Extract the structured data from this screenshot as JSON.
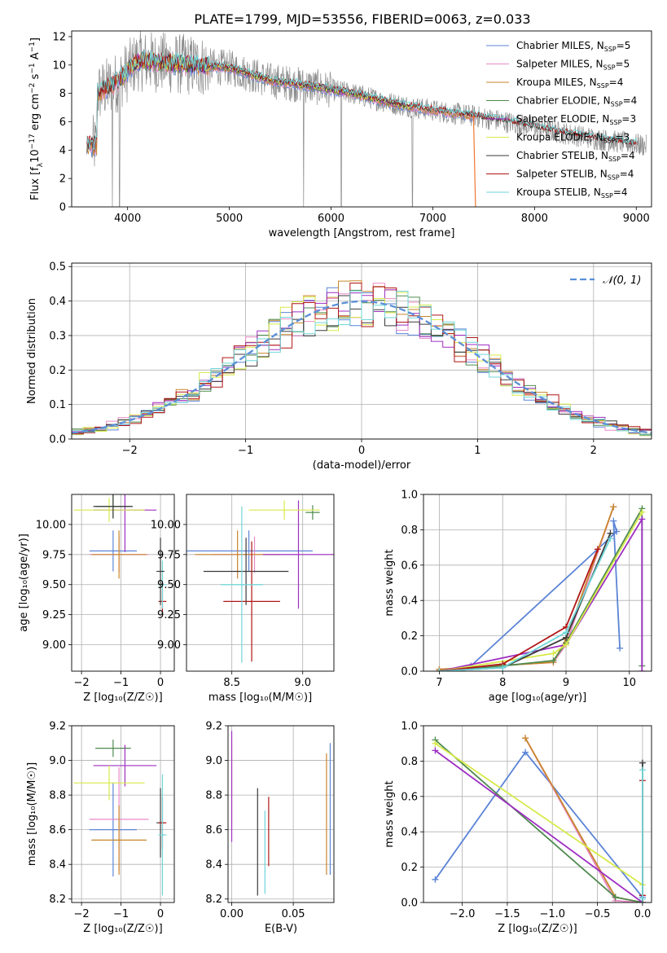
{
  "figure": {
    "title": "PLATE=1799, MJD=53556, FIBERID=0063, z=0.033"
  },
  "colors": {
    "Chabrier MILES": "#5b84d6",
    "Salpeter MILES": "#e98ac7",
    "Kroupa MILES": "#c8862c",
    "Chabrier ELODIE": "#4f8a4f",
    "Salpeter ELODIE": "#9e2fc2",
    "Kroupa ELODIE": "#d7ea4a",
    "Chabrier STELIB": "#3a3a3a",
    "Salpeter STELIB": "#b01515",
    "Kroupa STELIB": "#6fd6d9",
    "data": "#8c8c8c",
    "orange": "#ee7733",
    "gauss": "#5b8fd6",
    "grid": "#b0b0b0"
  },
  "chart_data": [
    {
      "id": "spectrum",
      "type": "line",
      "xlabel": "wavelength [Angstrom, rest frame]",
      "ylabel": "Flux [f_λ 10^-17 erg cm^-2 s^-1 A^-1]",
      "xlim": [
        3450,
        9150
      ],
      "ylim": [
        0,
        12.4
      ],
      "xticks": [
        4000,
        5000,
        6000,
        7000,
        8000,
        9000
      ],
      "yticks": [
        0,
        2,
        4,
        6,
        8,
        10,
        12
      ],
      "grid": false,
      "legend_position": "top-right",
      "legend": [
        {
          "label": "Chabrier MILES, N",
          "sub": "SSP",
          "suffix": "=5",
          "color_key": "Chabrier MILES"
        },
        {
          "label": "Salpeter MILES, N",
          "sub": "SSP",
          "suffix": "=5",
          "color_key": "Salpeter MILES"
        },
        {
          "label": "Kroupa MILES, N",
          "sub": "SSP",
          "suffix": "=4",
          "color_key": "Kroupa MILES"
        },
        {
          "label": "Chabrier ELODIE, N",
          "sub": "SSP",
          "suffix": "=4",
          "color_key": "Chabrier ELODIE"
        },
        {
          "label": "Salpeter ELODIE, N",
          "sub": "SSP",
          "suffix": "=3",
          "color_key": "Salpeter ELODIE"
        },
        {
          "label": "Kroupa ELODIE, N",
          "sub": "SSP",
          "suffix": "=3",
          "color_key": "Kroupa ELODIE"
        },
        {
          "label": "Chabrier STELIB, N",
          "sub": "SSP",
          "suffix": "=4",
          "color_key": "Chabrier STELIB"
        },
        {
          "label": "Salpeter STELIB, N",
          "sub": "SSP",
          "suffix": "=4",
          "color_key": "Salpeter STELIB"
        },
        {
          "label": "Kroupa STELIB, N",
          "sub": "SSP",
          "suffix": "=4",
          "color_key": "Kroupa STELIB"
        }
      ],
      "continuum": {
        "x": [
          3700,
          3900,
          4100,
          4300,
          4600,
          5000,
          5400,
          5800,
          6200,
          6600,
          7000,
          7400,
          7800,
          8200,
          8600,
          9100
        ],
        "y": [
          8.0,
          8.8,
          10.3,
          10.2,
          10.0,
          9.8,
          8.9,
          8.5,
          8.0,
          7.3,
          6.8,
          6.4,
          5.9,
          5.3,
          4.8,
          4.3
        ]
      },
      "model_ranges": {
        "MILES": [
          3600,
          7420
        ],
        "ELODIE": [
          3900,
          6800
        ],
        "STELIB": [
          3600,
          9000
        ]
      },
      "dropouts_x": [
        3850,
        3920,
        5730,
        6100,
        6800
      ]
    },
    {
      "id": "residuals",
      "type": "histogram",
      "xlabel": "(data-model)/error",
      "ylabel": "Normed distribution",
      "xlim": [
        -2.5,
        2.5
      ],
      "ylim": [
        0,
        0.51
      ],
      "xticks": [
        -2,
        -1,
        0,
        1,
        2
      ],
      "yticks": [
        0.0,
        0.1,
        0.2,
        0.3,
        0.4,
        0.5
      ],
      "grid": true,
      "legend_position": "top-right",
      "gauss_label": "𝒩(0, 1)",
      "bin_width": 0.1
    },
    {
      "id": "age-vs-Z",
      "type": "scatter",
      "xlabel": "Z [log₁₀(Z/Z☉)]",
      "ylabel": "age  [log₁₀(age/yr)]",
      "xlim": [
        -2.25,
        0.35
      ],
      "ylim": [
        8.78,
        10.25
      ],
      "xticks": [
        -2,
        -1,
        0
      ],
      "yticks": [
        9.0,
        9.25,
        9.5,
        9.75,
        10.0
      ],
      "grid": true,
      "points": [
        {
          "m": "Chabrier MILES",
          "x": -1.2,
          "xerr": 0.6,
          "y": 9.78,
          "yerr": 0.17
        },
        {
          "m": "Salpeter MILES",
          "x": -1.05,
          "xerr": 0.75,
          "y": 9.75,
          "yerr": 0.15
        },
        {
          "m": "Kroupa MILES",
          "x": -1.05,
          "xerr": 0.7,
          "y": 9.75,
          "yerr": 0.2
        },
        {
          "m": "Chabrier ELODIE",
          "x": -1.2,
          "xerr": 0.45,
          "y": 10.15,
          "yerr": 0.1
        },
        {
          "m": "Salpeter ELODIE",
          "x": -0.9,
          "xerr": 0.8,
          "y": 10.12,
          "yerr": 0.35
        },
        {
          "m": "Kroupa ELODIE",
          "x": -1.3,
          "xerr": 0.9,
          "y": 10.12,
          "yerr": 0.1
        },
        {
          "m": "Chabrier STELIB",
          "x": -1.2,
          "xerr": 0.5,
          "y": 10.15,
          "yerr": 0.1
        },
        {
          "m": "Salpeter STELIB",
          "x": 0.05,
          "xerr": 0.1,
          "y": 9.36,
          "yerr": 0.1
        },
        {
          "m": "Kroupa STELIB",
          "x": 0.05,
          "xerr": 0.1,
          "y": 9.5,
          "yerr": 0.2
        },
        {
          "m": "Chabrier STELIB",
          "x": 0.0,
          "xerr": 0.1,
          "y": 9.61,
          "yerr": 0.28
        }
      ]
    },
    {
      "id": "age-vs-mass",
      "type": "scatter",
      "xlabel": "mass [log₁₀(M/M☉)]",
      "ylabel": "",
      "xlim": [
        8.18,
        9.22
      ],
      "ylim": [
        8.78,
        10.25
      ],
      "xticks": [
        8.5,
        9.0
      ],
      "yticks": [
        9.0,
        9.25,
        9.5,
        9.75,
        10.0
      ],
      "grid": true,
      "points": [
        {
          "m": "Chabrier MILES",
          "x": 8.62,
          "xerr": 0.45,
          "y": 9.78,
          "yerr": 0.17
        },
        {
          "m": "Salpeter MILES",
          "x": 8.66,
          "xerr": 0.3,
          "y": 9.75,
          "yerr": 0.15
        },
        {
          "m": "Kroupa MILES",
          "x": 8.54,
          "xerr": 0.3,
          "y": 9.75,
          "yerr": 0.2
        },
        {
          "m": "Chabrier ELODIE",
          "x": 9.07,
          "xerr": 0.05,
          "y": 10.1,
          "yerr": 0.06
        },
        {
          "m": "Salpeter ELODIE",
          "x": 8.97,
          "xerr": 0.25,
          "y": 9.75,
          "yerr": 0.45
        },
        {
          "m": "Kroupa ELODIE",
          "x": 8.87,
          "xerr": 0.25,
          "y": 10.12,
          "yerr": 0.08
        },
        {
          "m": "Chabrier STELIB",
          "x": 8.6,
          "xerr": 0.3,
          "y": 9.61,
          "yerr": 0.28
        },
        {
          "m": "Salpeter STELIB",
          "x": 8.64,
          "xerr": 0.2,
          "y": 9.36,
          "yerr": 0.5
        },
        {
          "m": "Kroupa STELIB",
          "x": 8.57,
          "xerr": 0.15,
          "y": 9.5,
          "yerr": 0.65
        }
      ]
    },
    {
      "id": "mass-weight-vs-age",
      "type": "line",
      "xlabel": "age  [log₁₀(age/yr)]",
      "ylabel": "mass weight",
      "xlim": [
        6.75,
        10.35
      ],
      "ylim": [
        0,
        1.0
      ],
      "xticks": [
        7,
        8,
        9,
        10
      ],
      "yticks": [
        0.0,
        0.2,
        0.4,
        0.6,
        0.8,
        1.0
      ],
      "grid": true,
      "series": [
        {
          "m": "Chabrier MILES",
          "x": [
            7.5,
            9.8,
            9.75,
            9.85
          ],
          "y": [
            0.03,
            0.79,
            0.85,
            0.13
          ]
        },
        {
          "m": "Salpeter MILES",
          "x": [
            7.0,
            8.8,
            9.0,
            9.75
          ],
          "y": [
            0.01,
            0.05,
            0.15,
            0.93
          ]
        },
        {
          "m": "Kroupa MILES",
          "x": [
            7.0,
            8.8,
            9.0,
            9.75
          ],
          "y": [
            0.01,
            0.05,
            0.18,
            0.93
          ]
        },
        {
          "m": "Chabrier ELODIE",
          "x": [
            7.0,
            8.0,
            8.8,
            9.0,
            10.2,
            10.2
          ],
          "y": [
            0.0,
            0.03,
            0.06,
            0.16,
            0.92,
            0.03
          ]
        },
        {
          "m": "Salpeter ELODIE",
          "x": [
            7.0,
            9.0,
            10.2,
            10.2
          ],
          "y": [
            0.0,
            0.15,
            0.86,
            0.0
          ]
        },
        {
          "m": "Kroupa ELODIE",
          "x": [
            7.0,
            8.8,
            9.0,
            10.2
          ],
          "y": [
            0.0,
            0.1,
            0.15,
            0.9
          ]
        },
        {
          "m": "Chabrier STELIB",
          "x": [
            7.0,
            8.0,
            9.0,
            9.7
          ],
          "y": [
            0.0,
            0.02,
            0.19,
            0.78
          ]
        },
        {
          "m": "Salpeter STELIB",
          "x": [
            7.0,
            8.0,
            9.0,
            9.5
          ],
          "y": [
            0.0,
            0.04,
            0.25,
            0.69
          ]
        },
        {
          "m": "Kroupa STELIB",
          "x": [
            7.0,
            8.0,
            9.0,
            9.7
          ],
          "y": [
            0.0,
            0.02,
            0.22,
            0.75
          ]
        }
      ]
    },
    {
      "id": "mass-vs-Z",
      "type": "scatter",
      "xlabel": "Z [log₁₀(Z/Z☉)]",
      "ylabel": "mass [log₁₀(M/M☉)]",
      "xlim": [
        -2.25,
        0.35
      ],
      "ylim": [
        8.18,
        9.2
      ],
      "xticks": [
        -2,
        -1,
        0
      ],
      "yticks": [
        8.2,
        8.4,
        8.6,
        8.8,
        9.0,
        9.2
      ],
      "grid": true,
      "points": [
        {
          "m": "Chabrier MILES",
          "x": -1.2,
          "xerr": 0.6,
          "y": 8.6,
          "yerr": 0.27
        },
        {
          "m": "Salpeter MILES",
          "x": -1.05,
          "xerr": 0.75,
          "y": 8.66,
          "yerr": 0.3
        },
        {
          "m": "Kroupa MILES",
          "x": -1.05,
          "xerr": 0.7,
          "y": 8.54,
          "yerr": 0.2
        },
        {
          "m": "Chabrier ELODIE",
          "x": -1.2,
          "xerr": 0.45,
          "y": 9.07,
          "yerr": 0.05
        },
        {
          "m": "Salpeter ELODIE",
          "x": -0.9,
          "xerr": 0.8,
          "y": 8.97,
          "yerr": 0.12
        },
        {
          "m": "Kroupa ELODIE",
          "x": -1.3,
          "xerr": 0.9,
          "y": 8.87,
          "yerr": 0.1
        },
        {
          "m": "Chabrier STELIB",
          "x": 0.0,
          "xerr": 0.1,
          "y": 8.64,
          "yerr": 0.2
        },
        {
          "m": "Salpeter STELIB",
          "x": 0.05,
          "xerr": 0.1,
          "y": 8.64,
          "yerr": 0.15
        },
        {
          "m": "Kroupa STELIB",
          "x": 0.05,
          "xerr": 0.1,
          "y": 8.57,
          "yerr": 0.35
        }
      ]
    },
    {
      "id": "mass-vs-EBV",
      "type": "scatter",
      "xlabel": "E(B-V)",
      "ylabel": "",
      "xlim": [
        -0.003,
        0.083
      ],
      "ylim": [
        8.18,
        9.2
      ],
      "xticks": [
        0.0,
        0.05
      ],
      "yticks": [
        8.2,
        8.4,
        8.6,
        8.8,
        9.0,
        9.2
      ],
      "grid": true,
      "points": [
        {
          "m": "Kroupa ELODIE",
          "x": 0.0,
          "xerr": 0,
          "y": 8.87,
          "yerr": 0.25
        },
        {
          "m": "Salpeter ELODIE",
          "x": 0.0,
          "xerr": 0,
          "y": 8.85,
          "yerr": 0.32
        },
        {
          "m": "Chabrier STELIB",
          "x": 0.021,
          "xerr": 0,
          "y": 8.53,
          "yerr": 0.31
        },
        {
          "m": "Kroupa STELIB",
          "x": 0.027,
          "xerr": 0,
          "y": 8.47,
          "yerr": 0.24
        },
        {
          "m": "Salpeter STELIB",
          "x": 0.03,
          "xerr": 0,
          "y": 8.59,
          "yerr": 0.2
        },
        {
          "m": "Kroupa MILES",
          "x": 0.077,
          "xerr": 0,
          "y": 8.69,
          "yerr": 0.35
        },
        {
          "m": "Chabrier MILES",
          "x": 0.08,
          "xerr": 0,
          "y": 8.72,
          "yerr": 0.38
        }
      ]
    },
    {
      "id": "mass-weight-vs-Z",
      "type": "line",
      "xlabel": "Z [log₁₀(Z/Z☉)]",
      "ylabel": "mass weight",
      "xlim": [
        -2.43,
        0.1
      ],
      "ylim": [
        0,
        1.0
      ],
      "xticks": [
        -2.0,
        -1.5,
        -1.0,
        -0.5,
        0.0
      ],
      "yticks": [
        0.0,
        0.2,
        0.4,
        0.6,
        0.8,
        1.0
      ],
      "grid": true,
      "series": [
        {
          "m": "Chabrier MILES",
          "x": [
            -2.3,
            -1.3,
            0.0
          ],
          "y": [
            0.13,
            0.85,
            0.03
          ]
        },
        {
          "m": "Salpeter MILES",
          "x": [
            -1.3,
            -0.3,
            0.0
          ],
          "y": [
            0.93,
            0.01,
            0.0
          ]
        },
        {
          "m": "Kroupa MILES",
          "x": [
            -1.3,
            -0.3,
            0.0
          ],
          "y": [
            0.93,
            0.03,
            0.0
          ]
        },
        {
          "m": "Chabrier ELODIE",
          "x": [
            -2.3,
            -0.3,
            0.0
          ],
          "y": [
            0.92,
            0.03,
            0.0
          ]
        },
        {
          "m": "Salpeter ELODIE",
          "x": [
            -2.3,
            0.0
          ],
          "y": [
            0.86,
            0.0
          ]
        },
        {
          "m": "Kroupa ELODIE",
          "x": [
            -2.3,
            0.0
          ],
          "y": [
            0.9,
            0.1
          ]
        },
        {
          "m": "Chabrier STELIB",
          "x": [
            0.0,
            0.0
          ],
          "y": [
            0.0,
            0.79
          ]
        },
        {
          "m": "Salpeter STELIB",
          "x": [
            0.0,
            0.0
          ],
          "y": [
            0.04,
            0.69
          ]
        },
        {
          "m": "Kroupa STELIB",
          "x": [
            0.0,
            0.0
          ],
          "y": [
            0.02,
            0.75
          ]
        }
      ]
    }
  ]
}
